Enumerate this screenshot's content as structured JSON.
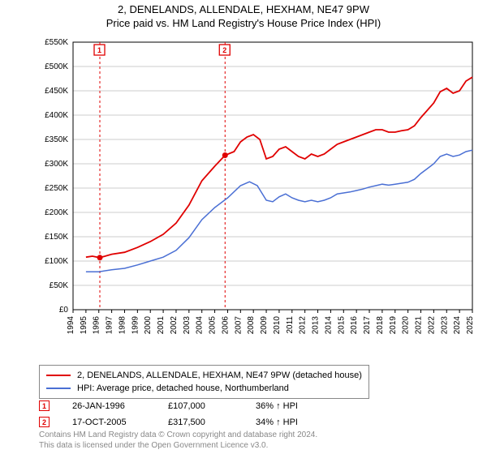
{
  "title_line1": "2, DENELANDS, ALLENDALE, HEXHAM, NE47 9PW",
  "title_line2": "Price paid vs. HM Land Registry's House Price Index (HPI)",
  "chart": {
    "type": "line",
    "background_color": "#ffffff",
    "grid_color": "#cccccc",
    "axis_color": "#000000",
    "tick_font_size": 10,
    "y_axis": {
      "min": 0,
      "max": 550000,
      "tick_step": 50000,
      "ticks": [
        "£0",
        "£50K",
        "£100K",
        "£150K",
        "£200K",
        "£250K",
        "£300K",
        "£350K",
        "£400K",
        "£450K",
        "£500K",
        "£550K"
      ]
    },
    "x_axis": {
      "min": 1994,
      "max": 2025,
      "ticks": [
        1994,
        1995,
        1996,
        1997,
        1998,
        1999,
        2000,
        2001,
        2002,
        2003,
        2004,
        2005,
        2006,
        2007,
        2008,
        2009,
        2010,
        2011,
        2012,
        2013,
        2014,
        2015,
        2016,
        2017,
        2018,
        2019,
        2020,
        2021,
        2022,
        2023,
        2024,
        2025
      ]
    },
    "series": [
      {
        "name": "2, DENELANDS, ALLENDALE, HEXHAM, NE47 9PW (detached house)",
        "color": "#e00000",
        "line_width": 1.8,
        "data": [
          [
            1995.0,
            108000
          ],
          [
            1995.5,
            110000
          ],
          [
            1996.08,
            107000
          ],
          [
            1997,
            114000
          ],
          [
            1998,
            118000
          ],
          [
            1999,
            128000
          ],
          [
            2000,
            140000
          ],
          [
            2001,
            155000
          ],
          [
            2002,
            178000
          ],
          [
            2003,
            215000
          ],
          [
            2004,
            265000
          ],
          [
            2005,
            295000
          ],
          [
            2005.8,
            317500
          ],
          [
            2006.5,
            325000
          ],
          [
            2007,
            345000
          ],
          [
            2007.5,
            355000
          ],
          [
            2008,
            360000
          ],
          [
            2008.5,
            350000
          ],
          [
            2009,
            310000
          ],
          [
            2009.5,
            315000
          ],
          [
            2010,
            330000
          ],
          [
            2010.5,
            335000
          ],
          [
            2011,
            325000
          ],
          [
            2011.5,
            315000
          ],
          [
            2012,
            310000
          ],
          [
            2012.5,
            320000
          ],
          [
            2013,
            315000
          ],
          [
            2013.5,
            320000
          ],
          [
            2014,
            330000
          ],
          [
            2014.5,
            340000
          ],
          [
            2015,
            345000
          ],
          [
            2015.5,
            350000
          ],
          [
            2016,
            355000
          ],
          [
            2016.5,
            360000
          ],
          [
            2017,
            365000
          ],
          [
            2017.5,
            370000
          ],
          [
            2018,
            370000
          ],
          [
            2018.5,
            365000
          ],
          [
            2019,
            365000
          ],
          [
            2019.5,
            368000
          ],
          [
            2020,
            370000
          ],
          [
            2020.5,
            378000
          ],
          [
            2021,
            395000
          ],
          [
            2021.5,
            410000
          ],
          [
            2022,
            425000
          ],
          [
            2022.5,
            448000
          ],
          [
            2023,
            455000
          ],
          [
            2023.5,
            445000
          ],
          [
            2024,
            450000
          ],
          [
            2024.5,
            470000
          ],
          [
            2025,
            478000
          ]
        ]
      },
      {
        "name": "HPI: Average price, detached house, Northumberland",
        "color": "#4a6fd4",
        "line_width": 1.5,
        "data": [
          [
            1995.0,
            78000
          ],
          [
            1996,
            78000
          ],
          [
            1997,
            82000
          ],
          [
            1998,
            85000
          ],
          [
            1999,
            92000
          ],
          [
            2000,
            100000
          ],
          [
            2001,
            108000
          ],
          [
            2002,
            122000
          ],
          [
            2003,
            148000
          ],
          [
            2004,
            185000
          ],
          [
            2005,
            210000
          ],
          [
            2006,
            230000
          ],
          [
            2007,
            255000
          ],
          [
            2007.7,
            263000
          ],
          [
            2008.3,
            255000
          ],
          [
            2009,
            225000
          ],
          [
            2009.5,
            222000
          ],
          [
            2010,
            232000
          ],
          [
            2010.5,
            238000
          ],
          [
            2011,
            230000
          ],
          [
            2011.5,
            225000
          ],
          [
            2012,
            222000
          ],
          [
            2012.5,
            225000
          ],
          [
            2013,
            222000
          ],
          [
            2013.5,
            225000
          ],
          [
            2014,
            230000
          ],
          [
            2014.5,
            238000
          ],
          [
            2015,
            240000
          ],
          [
            2015.5,
            242000
          ],
          [
            2016,
            245000
          ],
          [
            2016.5,
            248000
          ],
          [
            2017,
            252000
          ],
          [
            2017.5,
            255000
          ],
          [
            2018,
            258000
          ],
          [
            2018.5,
            256000
          ],
          [
            2019,
            258000
          ],
          [
            2019.5,
            260000
          ],
          [
            2020,
            262000
          ],
          [
            2020.5,
            268000
          ],
          [
            2021,
            280000
          ],
          [
            2021.5,
            290000
          ],
          [
            2022,
            300000
          ],
          [
            2022.5,
            315000
          ],
          [
            2023,
            320000
          ],
          [
            2023.5,
            315000
          ],
          [
            2024,
            318000
          ],
          [
            2024.5,
            325000
          ],
          [
            2025,
            328000
          ]
        ]
      }
    ],
    "sale_markers": [
      {
        "label": "1",
        "year": 1996.08,
        "value": 107000
      },
      {
        "label": "2",
        "year": 2005.8,
        "value": 317500
      }
    ],
    "sale_marker_color": "#e00000",
    "sale_line_color": "#e00000",
    "sale_line_dash": "3,3"
  },
  "legend": {
    "items": [
      {
        "color": "#e00000",
        "label": "2, DENELANDS, ALLENDALE, HEXHAM, NE47 9PW (detached house)"
      },
      {
        "color": "#4a6fd4",
        "label": "HPI: Average price, detached house, Northumberland"
      }
    ]
  },
  "sales": [
    {
      "marker": "1",
      "date": "26-JAN-1996",
      "price": "£107,000",
      "delta": "36% ↑ HPI"
    },
    {
      "marker": "2",
      "date": "17-OCT-2005",
      "price": "£317,500",
      "delta": "34% ↑ HPI"
    }
  ],
  "footer_line1": "Contains HM Land Registry data © Crown copyright and database right 2024.",
  "footer_line2": "This data is licensed under the Open Government Licence v3.0."
}
